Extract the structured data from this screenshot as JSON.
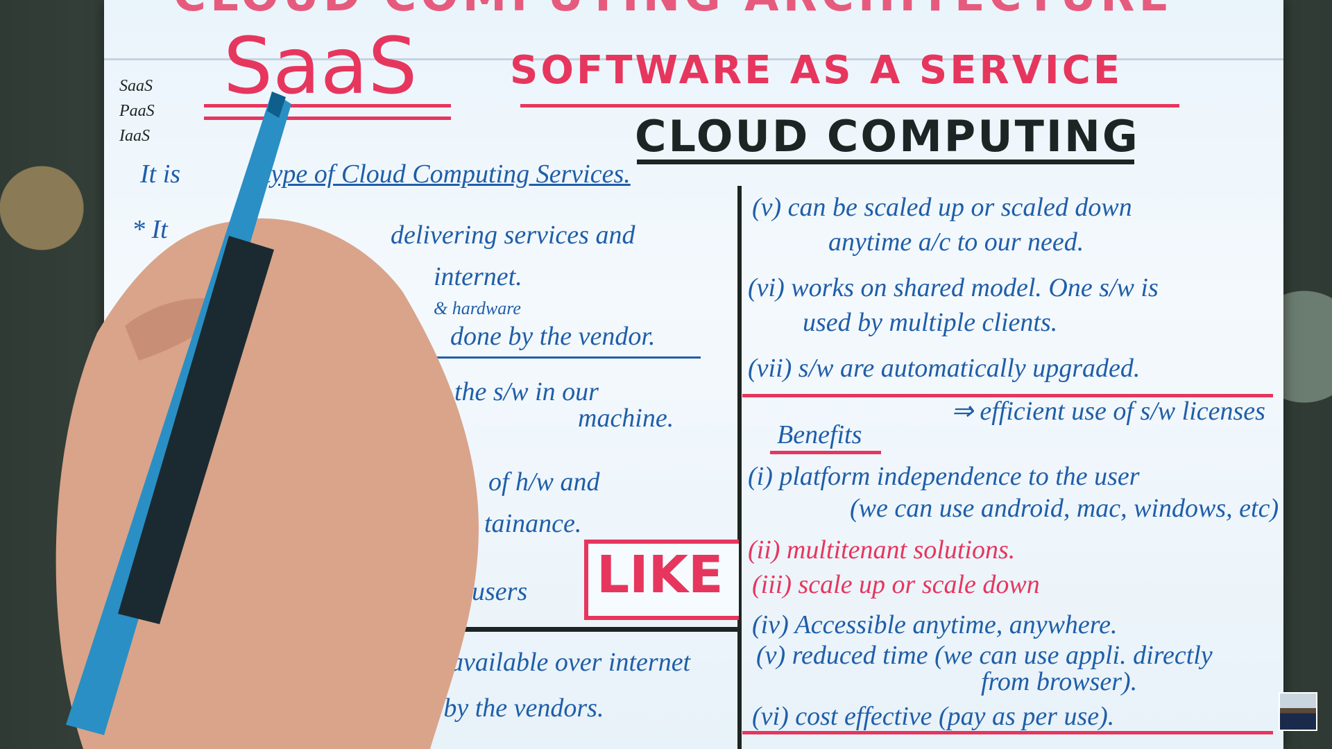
{
  "header_fragment": "CLOUD COMPUTING ARCHITECTURE",
  "side_list": [
    "SaaS",
    "PaaS",
    "IaaS"
  ],
  "title": "SaaS",
  "subtitle": "SOFTWARE AS A SERVICE",
  "heading": "CLOUD COMPUTING",
  "intro": [
    "It is",
    "type of Cloud Computing Services."
  ],
  "left_notes": [
    "* It",
    "delivering services and",
    "internet.",
    "& hardware",
    "done by the vendor.",
    "the s/w in our",
    "machine.",
    "of h/w and",
    "tainance.",
    "users",
    "available over internet",
    "ned by the vendors."
  ],
  "like_button": "LIKE",
  "right_notes": [
    "(v) can be scaled up or scaled down",
    "anytime a/c to our need.",
    "(vi) works on shared model. One s/w is",
    "used by multiple clients.",
    "(vii) s/w are automatically upgraded.",
    "⇒ efficient use of s/w licenses"
  ],
  "benefits": {
    "heading": "Benefits",
    "items": [
      "(i) platform independence to the user",
      "(we can use android, mac, windows, etc)",
      "(ii) multitenant solutions.",
      "(iii) scale up or scale down",
      "(iv) Accessible anytime, anywhere.",
      "(v) reduced time (we can use appli. directly",
      "from browser).",
      "(vi) cost effective (pay as per use)."
    ]
  }
}
